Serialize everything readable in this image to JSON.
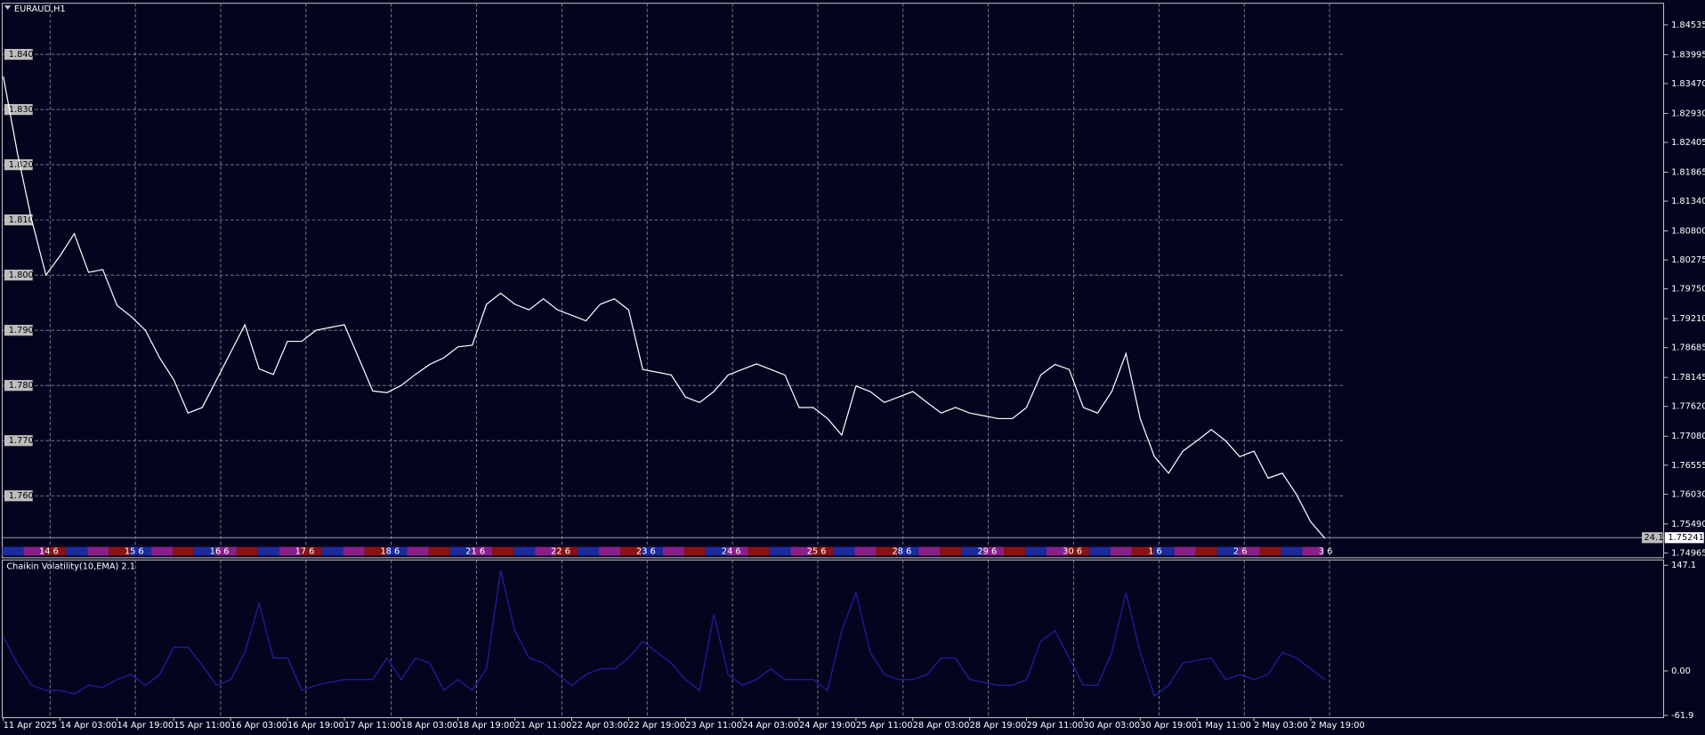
{
  "chart_data": [
    {
      "type": "line",
      "title": "EURAUD,H1",
      "color": "#ffffff",
      "categories": [
        "11 Apr 2025",
        null,
        null,
        null,
        "14 Apr 03:00",
        null,
        null,
        null,
        "14 Apr 19:00",
        null,
        null,
        null,
        "15 Apr 11:00",
        null,
        null,
        null,
        "16 Apr 03:00",
        null,
        null,
        null,
        "16 Apr 19:00",
        null,
        null,
        null,
        "17 Apr 11:00",
        null,
        null,
        null,
        "18 Apr 03:00",
        null,
        null,
        null,
        "18 Apr 19:00",
        null,
        null,
        null,
        "21 Apr 11:00",
        null,
        null,
        null,
        "22 Apr 03:00",
        null,
        null,
        null,
        "22 Apr 19:00",
        null,
        null,
        null,
        "23 Apr 11:00",
        null,
        null,
        null,
        "24 Apr 03:00",
        null,
        null,
        null,
        "24 Apr 19:00",
        null,
        null,
        null,
        "25 Apr 11:00",
        null,
        null,
        null,
        "28 Apr 03:00",
        null,
        null,
        null,
        "28 Apr 19:00",
        null,
        null,
        null,
        "29 Apr 11:00",
        null,
        null,
        null,
        "30 Apr 03:00",
        null,
        null,
        null,
        "30 Apr 19:00",
        null,
        null,
        null,
        "1 May 11:00",
        null,
        null,
        null,
        "2 May 03:00",
        null,
        null,
        null,
        "2 May 19:00",
        null
      ],
      "values": [
        1.836,
        1.822,
        1.81,
        1.8,
        1.8035,
        1.8075,
        1.8005,
        1.801,
        1.7945,
        1.7925,
        1.79,
        1.785,
        1.781,
        1.775,
        1.776,
        1.781,
        1.786,
        1.791,
        1.783,
        1.782,
        1.788,
        1.788,
        1.79,
        1.7905,
        1.791,
        1.785,
        1.779,
        1.7787,
        1.78,
        1.782,
        1.7838,
        1.785,
        1.787,
        1.7873,
        1.7947,
        1.7967,
        1.7947,
        1.7937,
        1.7957,
        1.7937,
        1.7927,
        1.7917,
        1.7947,
        1.7957,
        1.7937,
        1.7829,
        1.7824,
        1.7819,
        1.7779,
        1.7769,
        1.7789,
        1.7819,
        1.7829,
        1.7839,
        1.7829,
        1.7819,
        1.776,
        1.776,
        1.774,
        1.771,
        1.7799,
        1.7789,
        1.7769,
        1.7779,
        1.7789,
        1.7769,
        1.775,
        1.776,
        1.775,
        1.7745,
        1.774,
        1.774,
        1.776,
        1.7819,
        1.7838,
        1.7829,
        1.776,
        1.775,
        1.7789,
        1.7858,
        1.774,
        1.7671,
        1.7641,
        1.7681,
        1.77,
        1.772,
        1.77,
        1.7671,
        1.7681,
        1.7632,
        1.7641,
        1.7602,
        1.7553,
        1.7523
      ],
      "ylim": [
        1.74877,
        1.84926
      ],
      "yticks": [
        {
          "value": 1.84535,
          "label": "1.84535"
        },
        {
          "value": 1.83995,
          "label": "1.83995"
        },
        {
          "value": 1.8347,
          "label": "1.83470"
        },
        {
          "value": 1.8293,
          "label": "1.82930"
        },
        {
          "value": 1.82405,
          "label": "1.82405"
        },
        {
          "value": 1.81865,
          "label": "1.81865"
        },
        {
          "value": 1.8134,
          "label": "1.81340"
        },
        {
          "value": 1.808,
          "label": "1.80800"
        },
        {
          "value": 1.80275,
          "label": "1.80275"
        },
        {
          "value": 1.7975,
          "label": "1.79750"
        },
        {
          "value": 1.7921,
          "label": "1.79210"
        },
        {
          "value": 1.78685,
          "label": "1.78685"
        },
        {
          "value": 1.78145,
          "label": "1.78145"
        },
        {
          "value": 1.7762,
          "label": "1.77620"
        },
        {
          "value": 1.7708,
          "label": "1.77080"
        },
        {
          "value": 1.76555,
          "label": "1.76555"
        },
        {
          "value": 1.7603,
          "label": "1.76030"
        },
        {
          "value": 1.7549,
          "label": "1.75490"
        },
        {
          "value": 1.74965,
          "label": "1.74965"
        }
      ],
      "levels": [
        {
          "value": 1.84,
          "label": "1.840"
        },
        {
          "value": 1.83,
          "label": "1.830"
        },
        {
          "value": 1.82,
          "label": "1.820"
        },
        {
          "value": 1.81,
          "label": "1.810"
        },
        {
          "value": 1.8,
          "label": "1.800"
        },
        {
          "value": 1.79,
          "label": "1.790"
        },
        {
          "value": 1.78,
          "label": "1.780"
        },
        {
          "value": 1.77,
          "label": "1.770"
        },
        {
          "value": 1.76,
          "label": "1.760"
        }
      ],
      "current_price": {
        "value": 1.75241,
        "label": "1.75241"
      },
      "side_label": "24.1",
      "day_labels": [
        "14 6",
        "15 6",
        "16 6",
        "17 6",
        "18 6",
        "21 6",
        "22 6",
        "23 6",
        "24 6",
        "25 6",
        "28 6",
        "29 6",
        "30 6",
        "1 6",
        "2 6",
        "3 6"
      ],
      "grid": true
    },
    {
      "type": "line",
      "title": "Chaikin Volatility(10,EMA) 2.1",
      "color": "#1c1c96",
      "values": [
        48,
        10,
        -20,
        -27,
        -27,
        -32,
        -20,
        -23,
        -12,
        -5,
        -20,
        -5,
        33,
        33,
        8,
        -20,
        -12,
        26,
        94,
        18,
        18,
        -27,
        -20,
        -16,
        -12,
        -12,
        -12,
        18,
        -12,
        18,
        11,
        -27,
        -12,
        -27,
        3,
        140,
        56,
        18,
        11,
        -5,
        -20,
        -5,
        3,
        3,
        18,
        41,
        26,
        11,
        -12,
        -27,
        79,
        -5,
        -20,
        -12,
        3,
        -12,
        -12,
        -12,
        -27,
        56,
        109,
        26,
        -5,
        -12,
        -12,
        -5,
        18,
        18,
        -12,
        -16,
        -20,
        -20,
        -12,
        41,
        56,
        18,
        -20,
        -20,
        26,
        109,
        26,
        -35,
        -20,
        11,
        15,
        18,
        -12,
        -5,
        -12,
        -5,
        26,
        18,
        3,
        -12
      ],
      "ylim": [
        -65,
        153
      ],
      "yticks": [
        147.1,
        {
          "value": 0,
          "label": "0.00"
        },
        -61.9
      ]
    }
  ]
}
